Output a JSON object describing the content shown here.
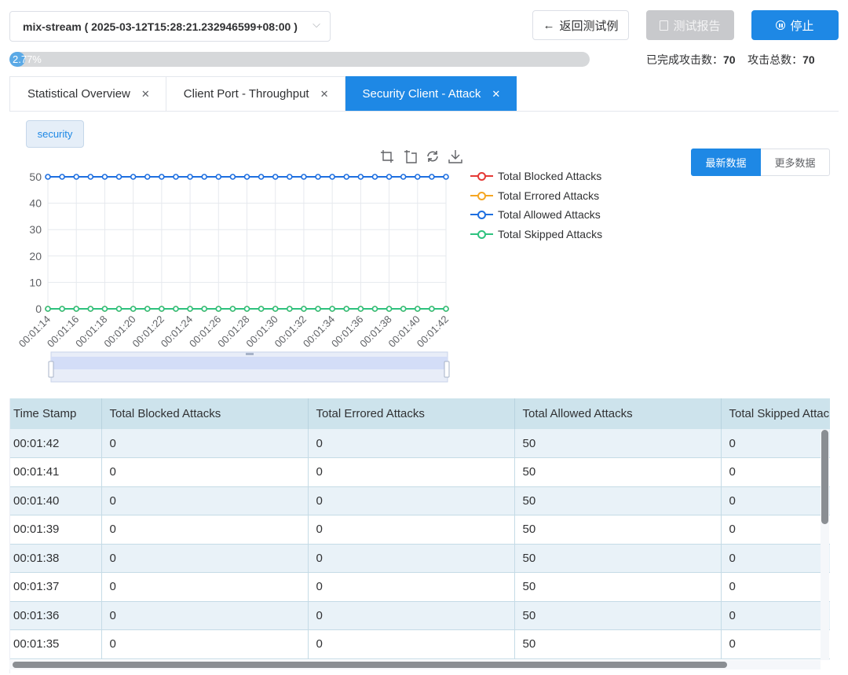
{
  "header": {
    "stream_label": "mix-stream ( 2025-03-12T15:28:21.232946599+08:00 )",
    "back_label": "返回测试例",
    "report_label": "测试报告",
    "stop_label": "停止",
    "progress": {
      "percent": 2.77,
      "text": "2.77%"
    },
    "completed_label": "已完成攻击数：",
    "completed_value": "70",
    "total_label": "攻击总数：",
    "total_value": "70"
  },
  "tabs": [
    {
      "label": "Statistical Overview",
      "active": false
    },
    {
      "label": "Client Port - Throughput",
      "active": false
    },
    {
      "label": "Security Client - Attack",
      "active": true
    }
  ],
  "chip": "security",
  "toolbox": [
    "zoom-icon",
    "zoom-reset-icon",
    "restore-icon",
    "download-icon"
  ],
  "view_toggle": {
    "latest": "最新数据",
    "more": "更多数据"
  },
  "colors": {
    "accent": "#1e88e5",
    "blocked": "#e53935",
    "errored": "#f5a623",
    "allowed": "#1e6fe0",
    "skipped": "#2ec27e"
  },
  "chart_data": {
    "type": "line",
    "x": [
      "00:01:14",
      "00:01:15",
      "00:01:16",
      "00:01:17",
      "00:01:18",
      "00:01:19",
      "00:01:20",
      "00:01:21",
      "00:01:22",
      "00:01:23",
      "00:01:24",
      "00:01:25",
      "00:01:26",
      "00:01:27",
      "00:01:28",
      "00:01:29",
      "00:01:30",
      "00:01:31",
      "00:01:32",
      "00:01:33",
      "00:01:34",
      "00:01:35",
      "00:01:36",
      "00:01:37",
      "00:01:38",
      "00:01:39",
      "00:01:40",
      "00:01:41",
      "00:01:42"
    ],
    "x_tick_labels": [
      "00:01:14",
      "00:01:16",
      "00:01:18",
      "00:01:20",
      "00:01:22",
      "00:01:24",
      "00:01:26",
      "00:01:28",
      "00:01:30",
      "00:01:32",
      "00:01:34",
      "00:01:36",
      "00:01:38",
      "00:01:40",
      "00:01:42"
    ],
    "y_ticks": [
      0,
      10,
      20,
      30,
      40,
      50
    ],
    "ylim": [
      0,
      50
    ],
    "grid": true,
    "legend_position": "right",
    "series": [
      {
        "name": "Total Blocked Attacks",
        "color": "#e53935",
        "values": [
          0,
          0,
          0,
          0,
          0,
          0,
          0,
          0,
          0,
          0,
          0,
          0,
          0,
          0,
          0,
          0,
          0,
          0,
          0,
          0,
          0,
          0,
          0,
          0,
          0,
          0,
          0,
          0,
          0
        ]
      },
      {
        "name": "Total Errored Attacks",
        "color": "#f5a623",
        "values": [
          0,
          0,
          0,
          0,
          0,
          0,
          0,
          0,
          0,
          0,
          0,
          0,
          0,
          0,
          0,
          0,
          0,
          0,
          0,
          0,
          0,
          0,
          0,
          0,
          0,
          0,
          0,
          0,
          0
        ]
      },
      {
        "name": "Total Allowed Attacks",
        "color": "#1e6fe0",
        "values": [
          50,
          50,
          50,
          50,
          50,
          50,
          50,
          50,
          50,
          50,
          50,
          50,
          50,
          50,
          50,
          50,
          50,
          50,
          50,
          50,
          50,
          50,
          50,
          50,
          50,
          50,
          50,
          50,
          50
        ]
      },
      {
        "name": "Total Skipped Attacks",
        "color": "#2ec27e",
        "values": [
          0,
          0,
          0,
          0,
          0,
          0,
          0,
          0,
          0,
          0,
          0,
          0,
          0,
          0,
          0,
          0,
          0,
          0,
          0,
          0,
          0,
          0,
          0,
          0,
          0,
          0,
          0,
          0,
          0
        ]
      }
    ]
  },
  "table": {
    "columns": [
      "Time Stamp",
      "Total Blocked Attacks",
      "Total Errored Attacks",
      "Total Allowed Attacks",
      "Total Skipped Attacks"
    ],
    "rows": [
      [
        "00:01:42",
        "0",
        "0",
        "50",
        "0"
      ],
      [
        "00:01:41",
        "0",
        "0",
        "50",
        "0"
      ],
      [
        "00:01:40",
        "0",
        "0",
        "50",
        "0"
      ],
      [
        "00:01:39",
        "0",
        "0",
        "50",
        "0"
      ],
      [
        "00:01:38",
        "0",
        "0",
        "50",
        "0"
      ],
      [
        "00:01:37",
        "0",
        "0",
        "50",
        "0"
      ],
      [
        "00:01:36",
        "0",
        "0",
        "50",
        "0"
      ],
      [
        "00:01:35",
        "0",
        "0",
        "50",
        "0"
      ]
    ]
  }
}
